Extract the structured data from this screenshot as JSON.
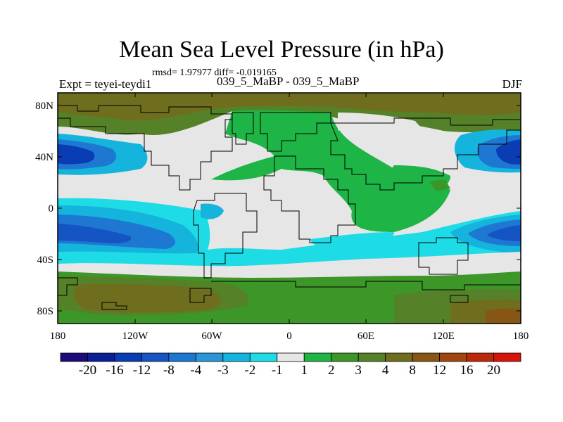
{
  "title": "Mean Sea Level Pressure (in hPa)",
  "stats": "rmsd= 1.97977 diff= -0.019165",
  "experiment": "Expt = teyei-teydi1",
  "subtitle": "039_5_MaBP - 039_5_MaBP",
  "season": "DJF",
  "x_ticks": [
    "180",
    "120W",
    "60W",
    "0",
    "60E",
    "120E",
    "180"
  ],
  "y_ticks": [
    "80N",
    "40N",
    "0",
    "40S",
    "80S"
  ],
  "colorbar": {
    "colors": [
      "#1e0a78",
      "#0a1e96",
      "#0a3cb4",
      "#1455c3",
      "#1e78d2",
      "#2896d7",
      "#14b4dc",
      "#1edce6",
      "#e6e6e6",
      "#1eb446",
      "#3c9628",
      "#558228",
      "#6e6e1e",
      "#875514",
      "#a0460f",
      "#be280a",
      "#d7140a"
    ],
    "labels": [
      "-20",
      "-16",
      "-12",
      "-8",
      "-4",
      "-3",
      "-2",
      "-1",
      "1",
      "2",
      "3",
      "4",
      "8",
      "12",
      "16",
      "20"
    ]
  }
}
